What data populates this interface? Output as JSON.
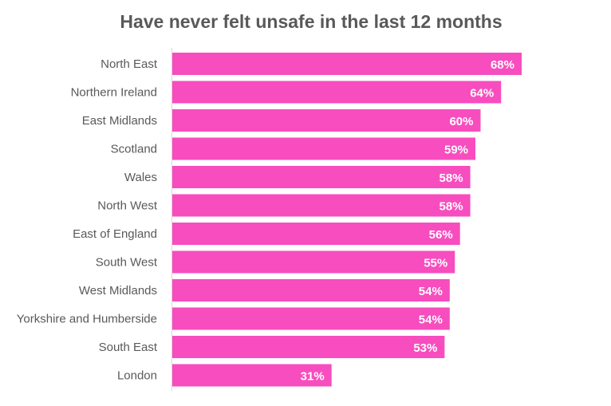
{
  "chart_data": {
    "type": "bar",
    "orientation": "horizontal",
    "title": "Have never felt unsafe in the last 12 months",
    "xlabel": "",
    "ylabel": "",
    "categories": [
      "North East",
      "Northern Ireland",
      "East Midlands",
      "Scotland",
      "Wales",
      "North West",
      "East of England",
      "South West",
      "West Midlands",
      "Yorkshire and Humberside",
      "South East",
      "London"
    ],
    "values": [
      68,
      64,
      60,
      59,
      58,
      58,
      56,
      55,
      54,
      54,
      53,
      31
    ],
    "labels": [
      "68%",
      "64%",
      "60%",
      "59%",
      "58%",
      "58%",
      "56%",
      "55%",
      "54%",
      "54%",
      "53%",
      "31%"
    ],
    "unit": "%",
    "xlim": [
      0,
      68
    ],
    "grid": false,
    "legend": "none",
    "colors": {
      "bar": "#F74DBE",
      "data_label": "#FFFFFF",
      "category_label": "#595959",
      "title": "#595959",
      "axis": "#D9D9D9"
    }
  }
}
